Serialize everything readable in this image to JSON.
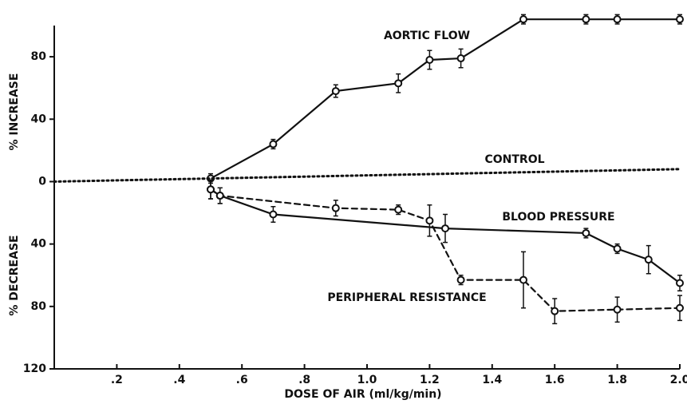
{
  "chart_data": {
    "type": "line",
    "xlabel": "DOSE OF AIR (ml/kg/min)",
    "ylabels": [
      "% INCREASE",
      "% DECREASE"
    ],
    "xlim": [
      0,
      2.0
    ],
    "ylim": [
      -120,
      100
    ],
    "xticks": [
      {
        "value": 0.2,
        "label": ".2"
      },
      {
        "value": 0.4,
        "label": ".4"
      },
      {
        "value": 0.6,
        "label": ".6"
      },
      {
        "value": 0.8,
        "label": ".8"
      },
      {
        "value": 1.0,
        "label": "1.0"
      },
      1.2,
      1.4,
      1.6,
      1.8,
      {
        "value": 2.0,
        "label": "2.0"
      }
    ],
    "yticks": [
      80,
      40,
      0,
      {
        "value": -40,
        "label": "40"
      },
      {
        "value": -80,
        "label": "80"
      },
      {
        "value": -120,
        "label": "120"
      }
    ],
    "series": [
      {
        "name": "AORTIC FLOW",
        "color": "#111111",
        "dash": "solid",
        "markers": true,
        "x": [
          0.5,
          0.7,
          0.9,
          1.1,
          1.2,
          1.3,
          1.5,
          1.7,
          1.8,
          2.0
        ],
        "values": [
          2,
          24,
          58,
          63,
          78,
          79,
          104,
          104,
          104,
          104
        ],
        "errors": [
          3,
          3,
          4,
          6,
          6,
          6,
          3,
          3,
          3,
          3
        ]
      },
      {
        "name": "CONTROL",
        "color": "#111111",
        "dash": "dotted",
        "markers": false,
        "x": [
          0,
          2.0
        ],
        "values": [
          0,
          8
        ]
      },
      {
        "name": "BLOOD PRESSURE",
        "color": "#111111",
        "dash": "solid",
        "markers": true,
        "x": [
          0.5,
          0.53,
          0.7,
          1.25,
          1.7,
          1.8,
          1.9,
          2.0
        ],
        "values": [
          -5,
          -9,
          -21,
          -30,
          -33,
          -43,
          -50,
          -65
        ],
        "errors": [
          6,
          5,
          5,
          9,
          3,
          3,
          9,
          5
        ]
      },
      {
        "name": "PERIPHERAL RESISTANCE",
        "color": "#111111",
        "dash": "dashed",
        "markers": true,
        "x": [
          0.5,
          0.53,
          0.9,
          1.1,
          1.2,
          1.3,
          1.5,
          1.6,
          1.8,
          2.0
        ],
        "values": [
          -5,
          -9,
          -17,
          -18,
          -25,
          -63,
          -63,
          -83,
          -82,
          -81
        ],
        "errors": [
          6,
          5,
          5,
          3,
          10,
          3,
          18,
          8,
          8,
          8
        ]
      }
    ]
  }
}
